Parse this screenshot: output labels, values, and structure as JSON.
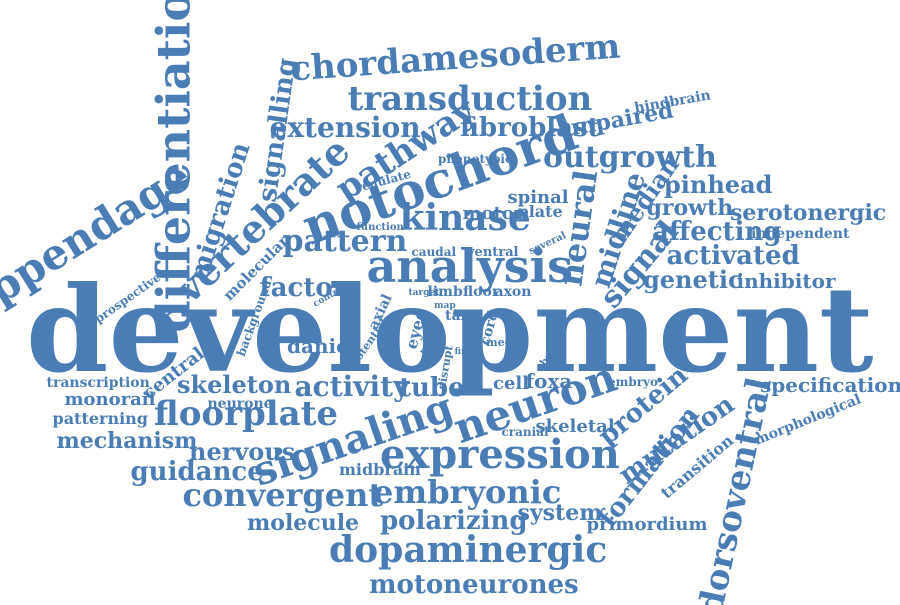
{
  "color": "#4a7db5",
  "words": [
    "development",
    "differentiation",
    "appendage",
    "chordamesoderm",
    "transduction",
    "extension",
    "signalling",
    "pathway",
    "fibroblast",
    "unpaired",
    "hindbrain",
    "outgrowth",
    "notochord",
    "vertebrate",
    "migration",
    "kinase",
    "pattern",
    "analysis",
    "neural",
    "midline",
    "median",
    "pinhead",
    "growth",
    "serotonergic",
    "affecting",
    "independent",
    "signal",
    "activated",
    "genetic",
    "inhibitor",
    "factor",
    "molecular",
    "background",
    "prospective",
    "spinal",
    "plate",
    "motor",
    "regulate",
    "phenotypic",
    "function",
    "caudal",
    "ventral",
    "several",
    "target",
    "limb",
    "floor",
    "axon",
    "control",
    "map",
    "axial",
    "potential",
    "eyed",
    "tail",
    "ready",
    "disrupt",
    "fin",
    "cord",
    "medial",
    "absence",
    "danio",
    "central",
    "transcription",
    "monorail",
    "patterning",
    "neurone",
    "mechanism",
    "skeleton",
    "floorplate",
    "activity",
    "tube",
    "signaling",
    "neuron",
    "cell",
    "foxa",
    "embryo",
    "protein",
    "specification",
    "morphological",
    "dorsoventral",
    "nervous",
    "guidance",
    "expression",
    "cranial",
    "skeletal",
    "mutation",
    "formation",
    "transition",
    "convergent",
    "midbrain",
    "embryonic",
    "molecule",
    "polarizing",
    "system",
    "primordium",
    "dopaminergic",
    "motoneurones"
  ]
}
